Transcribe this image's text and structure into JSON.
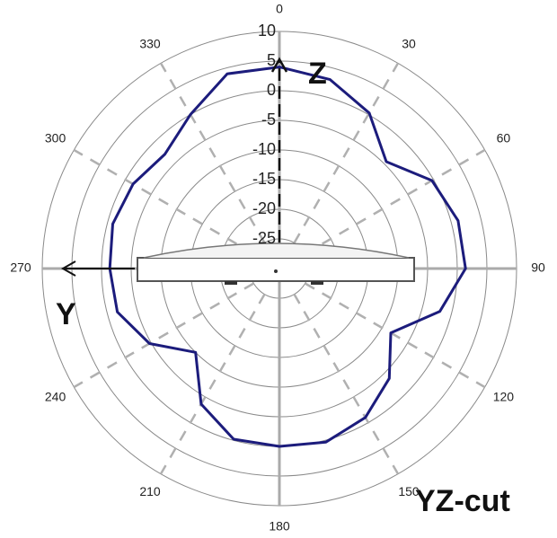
{
  "chart_data": {
    "type": "polar",
    "theta": [
      0,
      15,
      30,
      45,
      60,
      75,
      90,
      105,
      120,
      135,
      150,
      165,
      180,
      195,
      210,
      225,
      240,
      255,
      270,
      285,
      300,
      315,
      330,
      345
    ],
    "series": [
      {
        "color": "#1c1c7c",
        "values": [
          4,
          3,
          0.3,
          -4.5,
          -0.3,
          1.2,
          1.4,
          -2,
          -8.3,
          -3.8,
          -1,
          0.3,
          0,
          -0.2,
          -3.6,
          -10,
          -4.7,
          -1.7,
          -1.4,
          -0.9,
          -1.5,
          -2.7,
          0,
          4
        ]
      }
    ],
    "rlim": [
      -30,
      10
    ],
    "rticks": [
      10,
      5,
      0,
      -5,
      -10,
      -15,
      -20,
      -25
    ],
    "thetaticks": [
      0,
      30,
      60,
      90,
      120,
      150,
      180,
      210,
      240,
      270,
      300,
      330
    ],
    "annotations": {
      "z_axis": "Z",
      "y_axis": "Y",
      "cut": "YZ-cut"
    }
  }
}
